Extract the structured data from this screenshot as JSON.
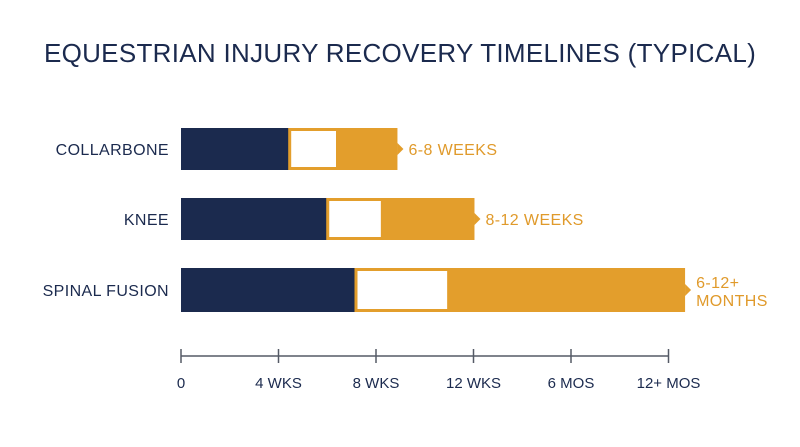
{
  "colors": {
    "navy": "#1b2a4e",
    "gold": "#e39e2c",
    "white": "#ffffff",
    "axis": "#555a66"
  },
  "chart_data": {
    "type": "bar",
    "orientation": "horizontal",
    "stacked": true,
    "title": "EQUESTRIAN INJURY RECOVERY TIMELINES (TYPICAL)",
    "xlabel": "",
    "ylabel": "",
    "categories": [
      "COLLARBONE",
      "KNEE",
      "SPINAL FUSION"
    ],
    "tick_labels": [
      "0",
      "4 WKS",
      "8 WKS",
      "12 WKS",
      "6 MOS",
      "12+ MOS"
    ],
    "xlim": [
      0,
      5.2
    ],
    "grid": false,
    "segments": [
      {
        "color": "navy",
        "values": [
          1.12,
          1.51,
          1.8
        ]
      },
      {
        "color": "white",
        "values": [
          0.48,
          0.55,
          0.94
        ]
      },
      {
        "color": "gold",
        "values": [
          0.62,
          0.95,
          2.43
        ]
      }
    ],
    "duration_labels": [
      [
        "6-8 WEEKS"
      ],
      [
        "8-12 WEEKS"
      ],
      [
        "6-12+",
        "MONTHS"
      ]
    ]
  }
}
